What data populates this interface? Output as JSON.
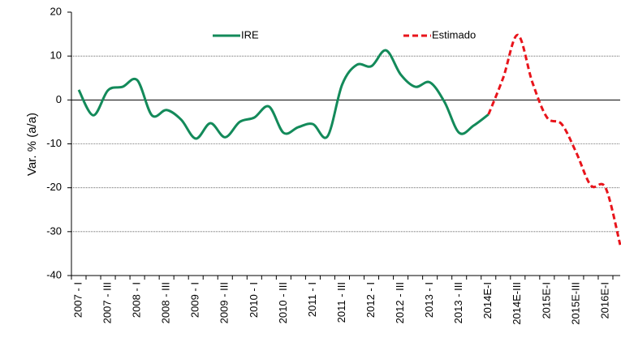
{
  "chart_data": {
    "type": "line",
    "categories": [
      "2007 - I",
      null,
      "2007 - III",
      null,
      "2008 - I",
      null,
      "2008 - III",
      null,
      "2009 - I",
      null,
      "2009 - III",
      null,
      "2010 - I",
      null,
      "2010 - III",
      null,
      "2011 - I",
      null,
      "2011 - III",
      null,
      "2012 - I",
      null,
      "2012 - III",
      null,
      "2013 - I",
      null,
      "2013 - III",
      null,
      "2014E-I",
      null,
      "2014E-III",
      null,
      "2015E-I",
      null,
      "2015E-III",
      null,
      "2016E-I",
      null
    ],
    "series": [
      {
        "name": "IRE",
        "color": "#138a5a",
        "dash": false,
        "values": [
          2.3,
          -3.5,
          2.2,
          3,
          4.5,
          -3.5,
          -2.3,
          -4.5,
          -8.8,
          -5.3,
          -8.5,
          -5,
          -4,
          -1.5,
          -7.5,
          -6.2,
          -5.5,
          -8.3,
          3.5,
          8,
          7.7,
          11.3,
          5.8,
          3,
          4,
          -0.5,
          -7.5,
          -5.8,
          -3.3,
          null,
          null,
          null,
          null,
          null,
          null,
          null,
          null,
          null
        ]
      },
      {
        "name": "Estimado",
        "color": "#e8141b",
        "dash": true,
        "values": [
          null,
          null,
          null,
          null,
          null,
          null,
          null,
          null,
          null,
          null,
          null,
          null,
          null,
          null,
          null,
          null,
          null,
          null,
          null,
          null,
          null,
          null,
          null,
          null,
          null,
          null,
          null,
          null,
          -3.3,
          5,
          14.8,
          4,
          -4,
          -5.5,
          -12,
          -19.5,
          -20,
          -33
        ]
      }
    ],
    "y_label": "Var. % (a/a)",
    "ylim": [
      -40,
      20
    ],
    "yticks": [
      -40,
      -30,
      -20,
      -10,
      0,
      10,
      20
    ],
    "grid": true
  }
}
